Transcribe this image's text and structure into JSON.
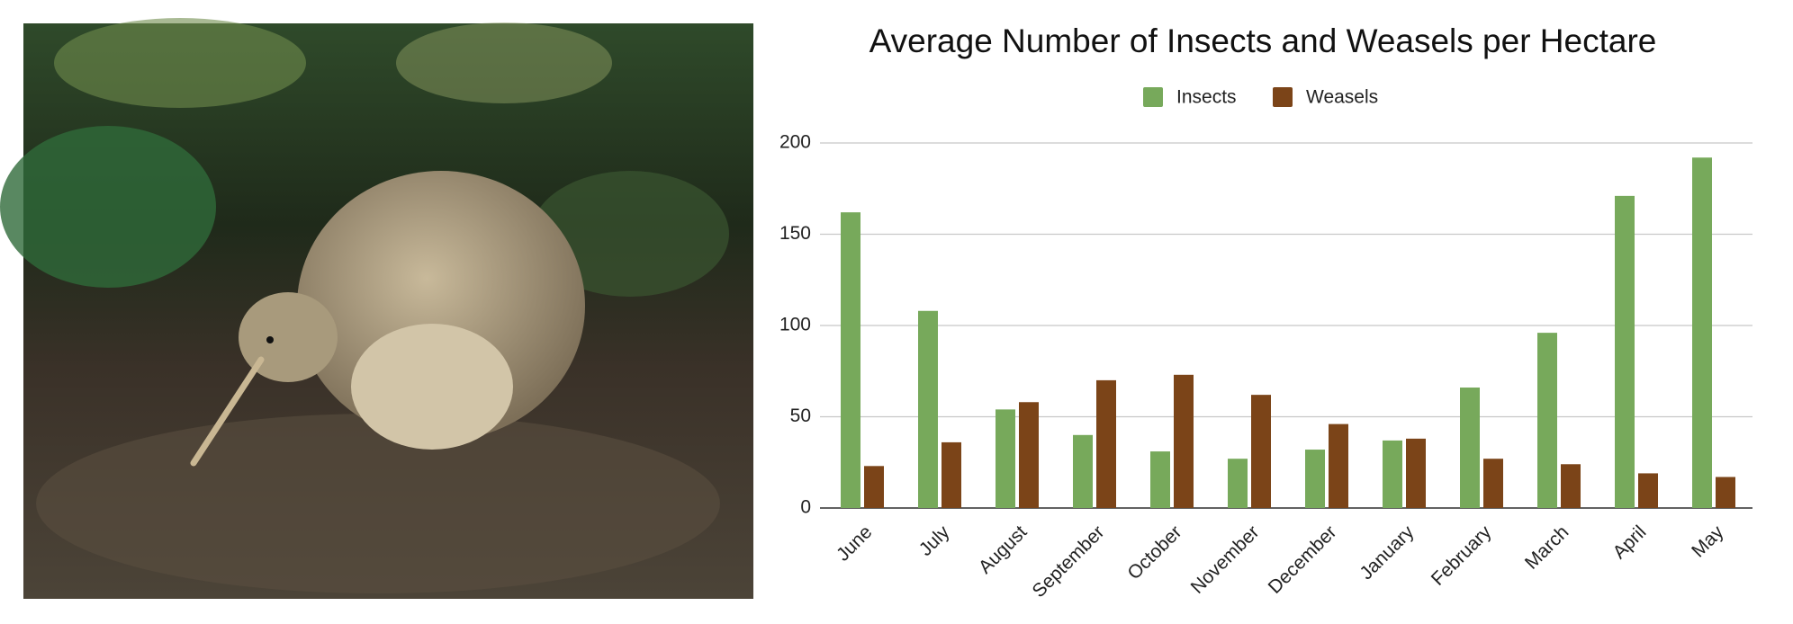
{
  "chart_data": {
    "type": "bar",
    "title": "Average Number of Insects and Weasels per Hectare",
    "categories": [
      "June",
      "July",
      "August",
      "September",
      "October",
      "November",
      "December",
      "January",
      "February",
      "March",
      "April",
      "May"
    ],
    "series": [
      {
        "name": "Insects",
        "color": "#77a95b",
        "values": [
          162,
          108,
          54,
          40,
          31,
          27,
          32,
          37,
          66,
          96,
          171,
          192
        ]
      },
      {
        "name": "Weasels",
        "color": "#7b4418",
        "values": [
          23,
          36,
          58,
          70,
          73,
          62,
          46,
          38,
          27,
          24,
          19,
          17
        ]
      }
    ],
    "ylim": [
      0,
      200
    ],
    "yticks": [
      0,
      50,
      100,
      150,
      200
    ],
    "grid": true,
    "legend": "top"
  }
}
